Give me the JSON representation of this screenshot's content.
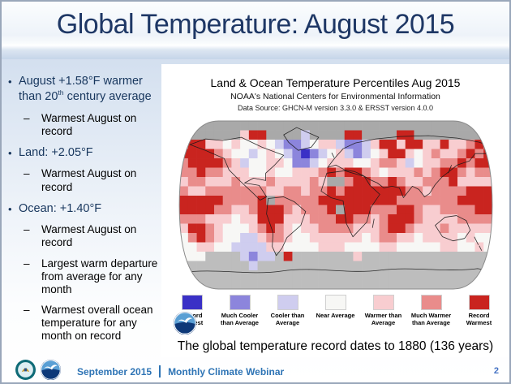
{
  "slide": {
    "title": "Global Temperature: August 2015",
    "title_color": "#1e3765",
    "page_number": "2",
    "footer": {
      "date": "September 2015",
      "label": "Monthly Climate Webinar",
      "text_color": "#2e74b5"
    }
  },
  "sidebar": {
    "bullets": [
      {
        "level": 1,
        "pre": "August +1.58°F warmer than 20",
        "sup": "th",
        "post": " century average"
      },
      {
        "level": 2,
        "text": "Warmest August on record"
      },
      {
        "level": 1,
        "text": "Land: +2.05°F"
      },
      {
        "level": 2,
        "text": "Warmest August on record"
      },
      {
        "level": 1,
        "text": "Ocean: +1.40°F"
      },
      {
        "level": 2,
        "text": "Warmest August on record"
      },
      {
        "level": 2,
        "text": "Largest warm departure from average for any month"
      },
      {
        "level": 2,
        "text": "Warmest overall ocean temperature for any month on record"
      }
    ]
  },
  "map_panel": {
    "title": "Land & Ocean Temperature Percentiles Aug 2015",
    "subtitle": "NOAA's National Centers for Environmental Information",
    "data_source": "Data Source: GHCN-M version 3.3.0 & ERSST version 4.0.0",
    "caption": "The global temperature record dates to 1880 (136 years)",
    "legend": [
      {
        "label": "Record Coldest",
        "color": "#3a30c6"
      },
      {
        "label": "Much Cooler than Average",
        "color": "#8c85dc"
      },
      {
        "label": "Cooler than Average",
        "color": "#cfcdef"
      },
      {
        "label": "Near Average",
        "color": "#f7f7f5"
      },
      {
        "label": "Warmer than Average",
        "color": "#f8cdd0"
      },
      {
        "label": "Much Warmer than Average",
        "color": "#e98c8b"
      },
      {
        "label": "Record Warmest",
        "color": "#c9241f"
      }
    ],
    "color_keys": {
      "B": "#3a30c6",
      "C": "#8c85dc",
      "c": "#cfcdef",
      ".": "#f7f7f5",
      "w": "#f8cdd0",
      "M": "#e98c8b",
      "R": "#c9241f",
      "G": "#a9a9a9",
      "g": "#bdbdbd"
    },
    "grid_rows": [
      "GGGGGGGGGGGGGGGGGGGGGGGGGGGGGGGGGGGG",
      "GGGGGGGwRRGGGGcGGGGRRGGGGRRGGGGGGGGG",
      "MRRww.w..w.cCCc.wwcCCcwRRwRRwwRwwMRM",
      "RRRRMw..c.w.cCBCc.wcCc.wRRw.wMwwMRMR",
      "MRRRRMwc..ww.CCc.www..wMMwc.wwMMRMRR",
      "MMRMMwww..w..wwwMRMRRMw.wwwMwMRRMwMM",
      "wMMwwwMwwwMwwwwMwGGMRRMMRMwwMMMRwwww",
      "MwwMMMMMMMwwMMwMMRMRRRRRRRMMwMMMMRRR",
      "RRRRRMMMMRGMMMMMRRRRRRRRRMMMMMMMRRRR",
      "RRRRMMwwMRRRMwMMMRGRRRMMMRRMwwMMMMRR",
      "MMMwww.wwRRRwwwMMMRRMMwMRRRMwwwwMMMM",
      "wRRMw...wMRMw.wwMMMMwwwMRRMwwwMwwwww",
      ".MRMw..ccwMMw..wwwwww.wMMww.wwww.w..",
      "..ww..ccccww....www....ww.....ww..w.",
      "...ggggcCccgRgggggggwggggggggggggggg",
      "ggggggggcggggggggggggggggggggggggggg",
      "gggggggggggggggggggggggggggggggggggg",
      "gggggggggggggggggggggggggggggggggggg"
    ]
  }
}
